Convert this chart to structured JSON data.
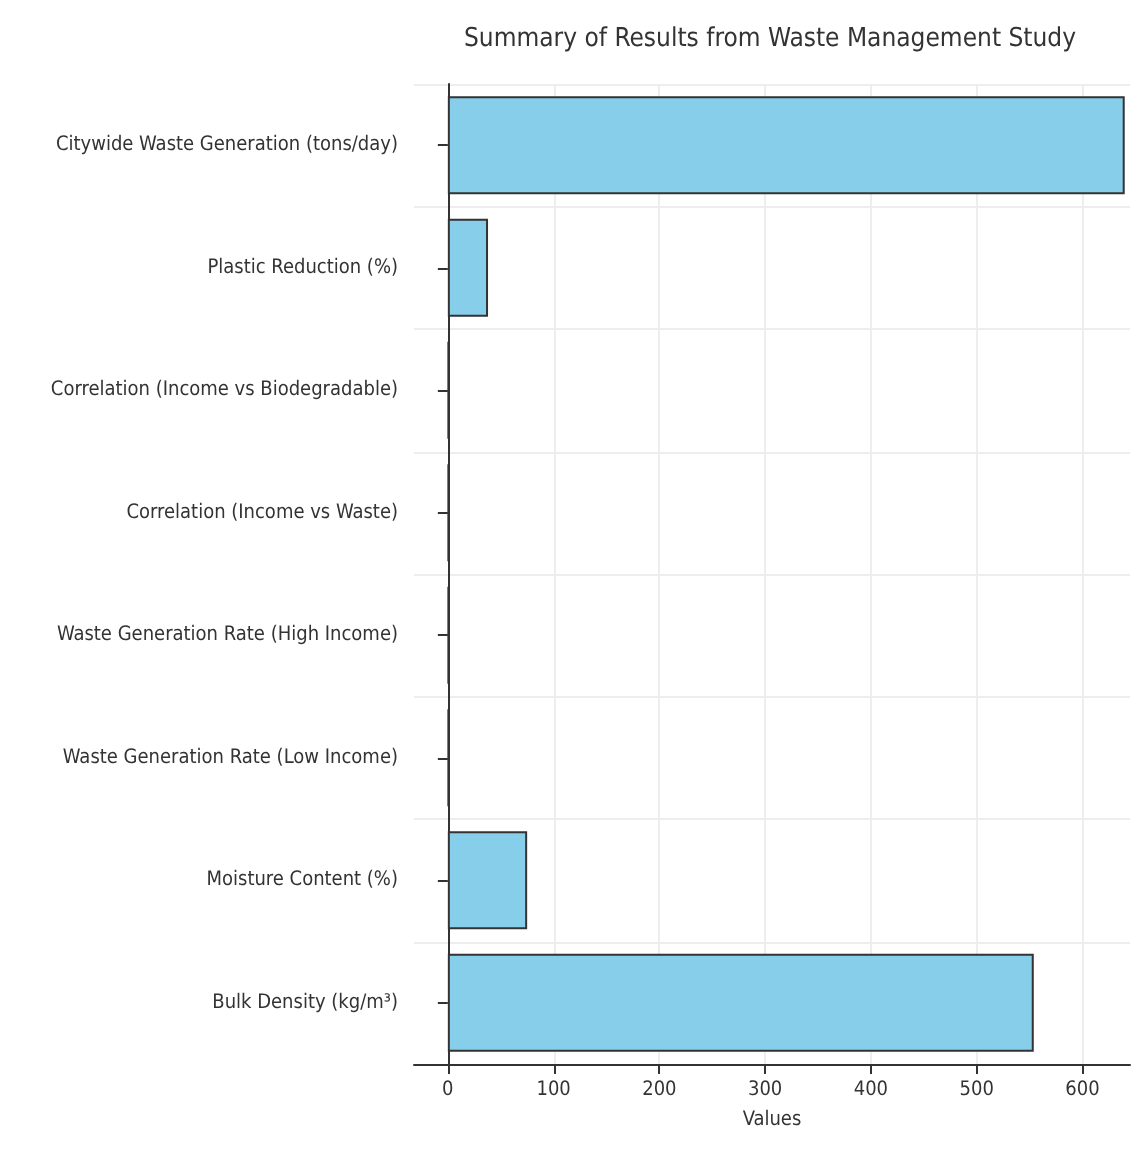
{
  "chart_data": {
    "type": "bar",
    "orientation": "horizontal",
    "title": "Summary of Results from Waste Management Study",
    "xlabel": "Values",
    "categories": [
      "Citywide Waste Generation (tons/day)",
      "Plastic Reduction (%)",
      "Correlation (Income vs Biodegradable)",
      "Correlation (Income vs Waste)",
      "Waste Generation Rate (High Income)",
      "Waste Generation Rate (Low Income)",
      "Moisture Content (%)",
      "Bulk Density (kg/m³)"
    ],
    "values": [
      640,
      38,
      1,
      1,
      1,
      1,
      75,
      554
    ],
    "color": "#87ceeb",
    "xlim": [
      -32,
      645
    ],
    "xticks": [
      0,
      100,
      200,
      300,
      400,
      500,
      600
    ],
    "grid": true
  }
}
